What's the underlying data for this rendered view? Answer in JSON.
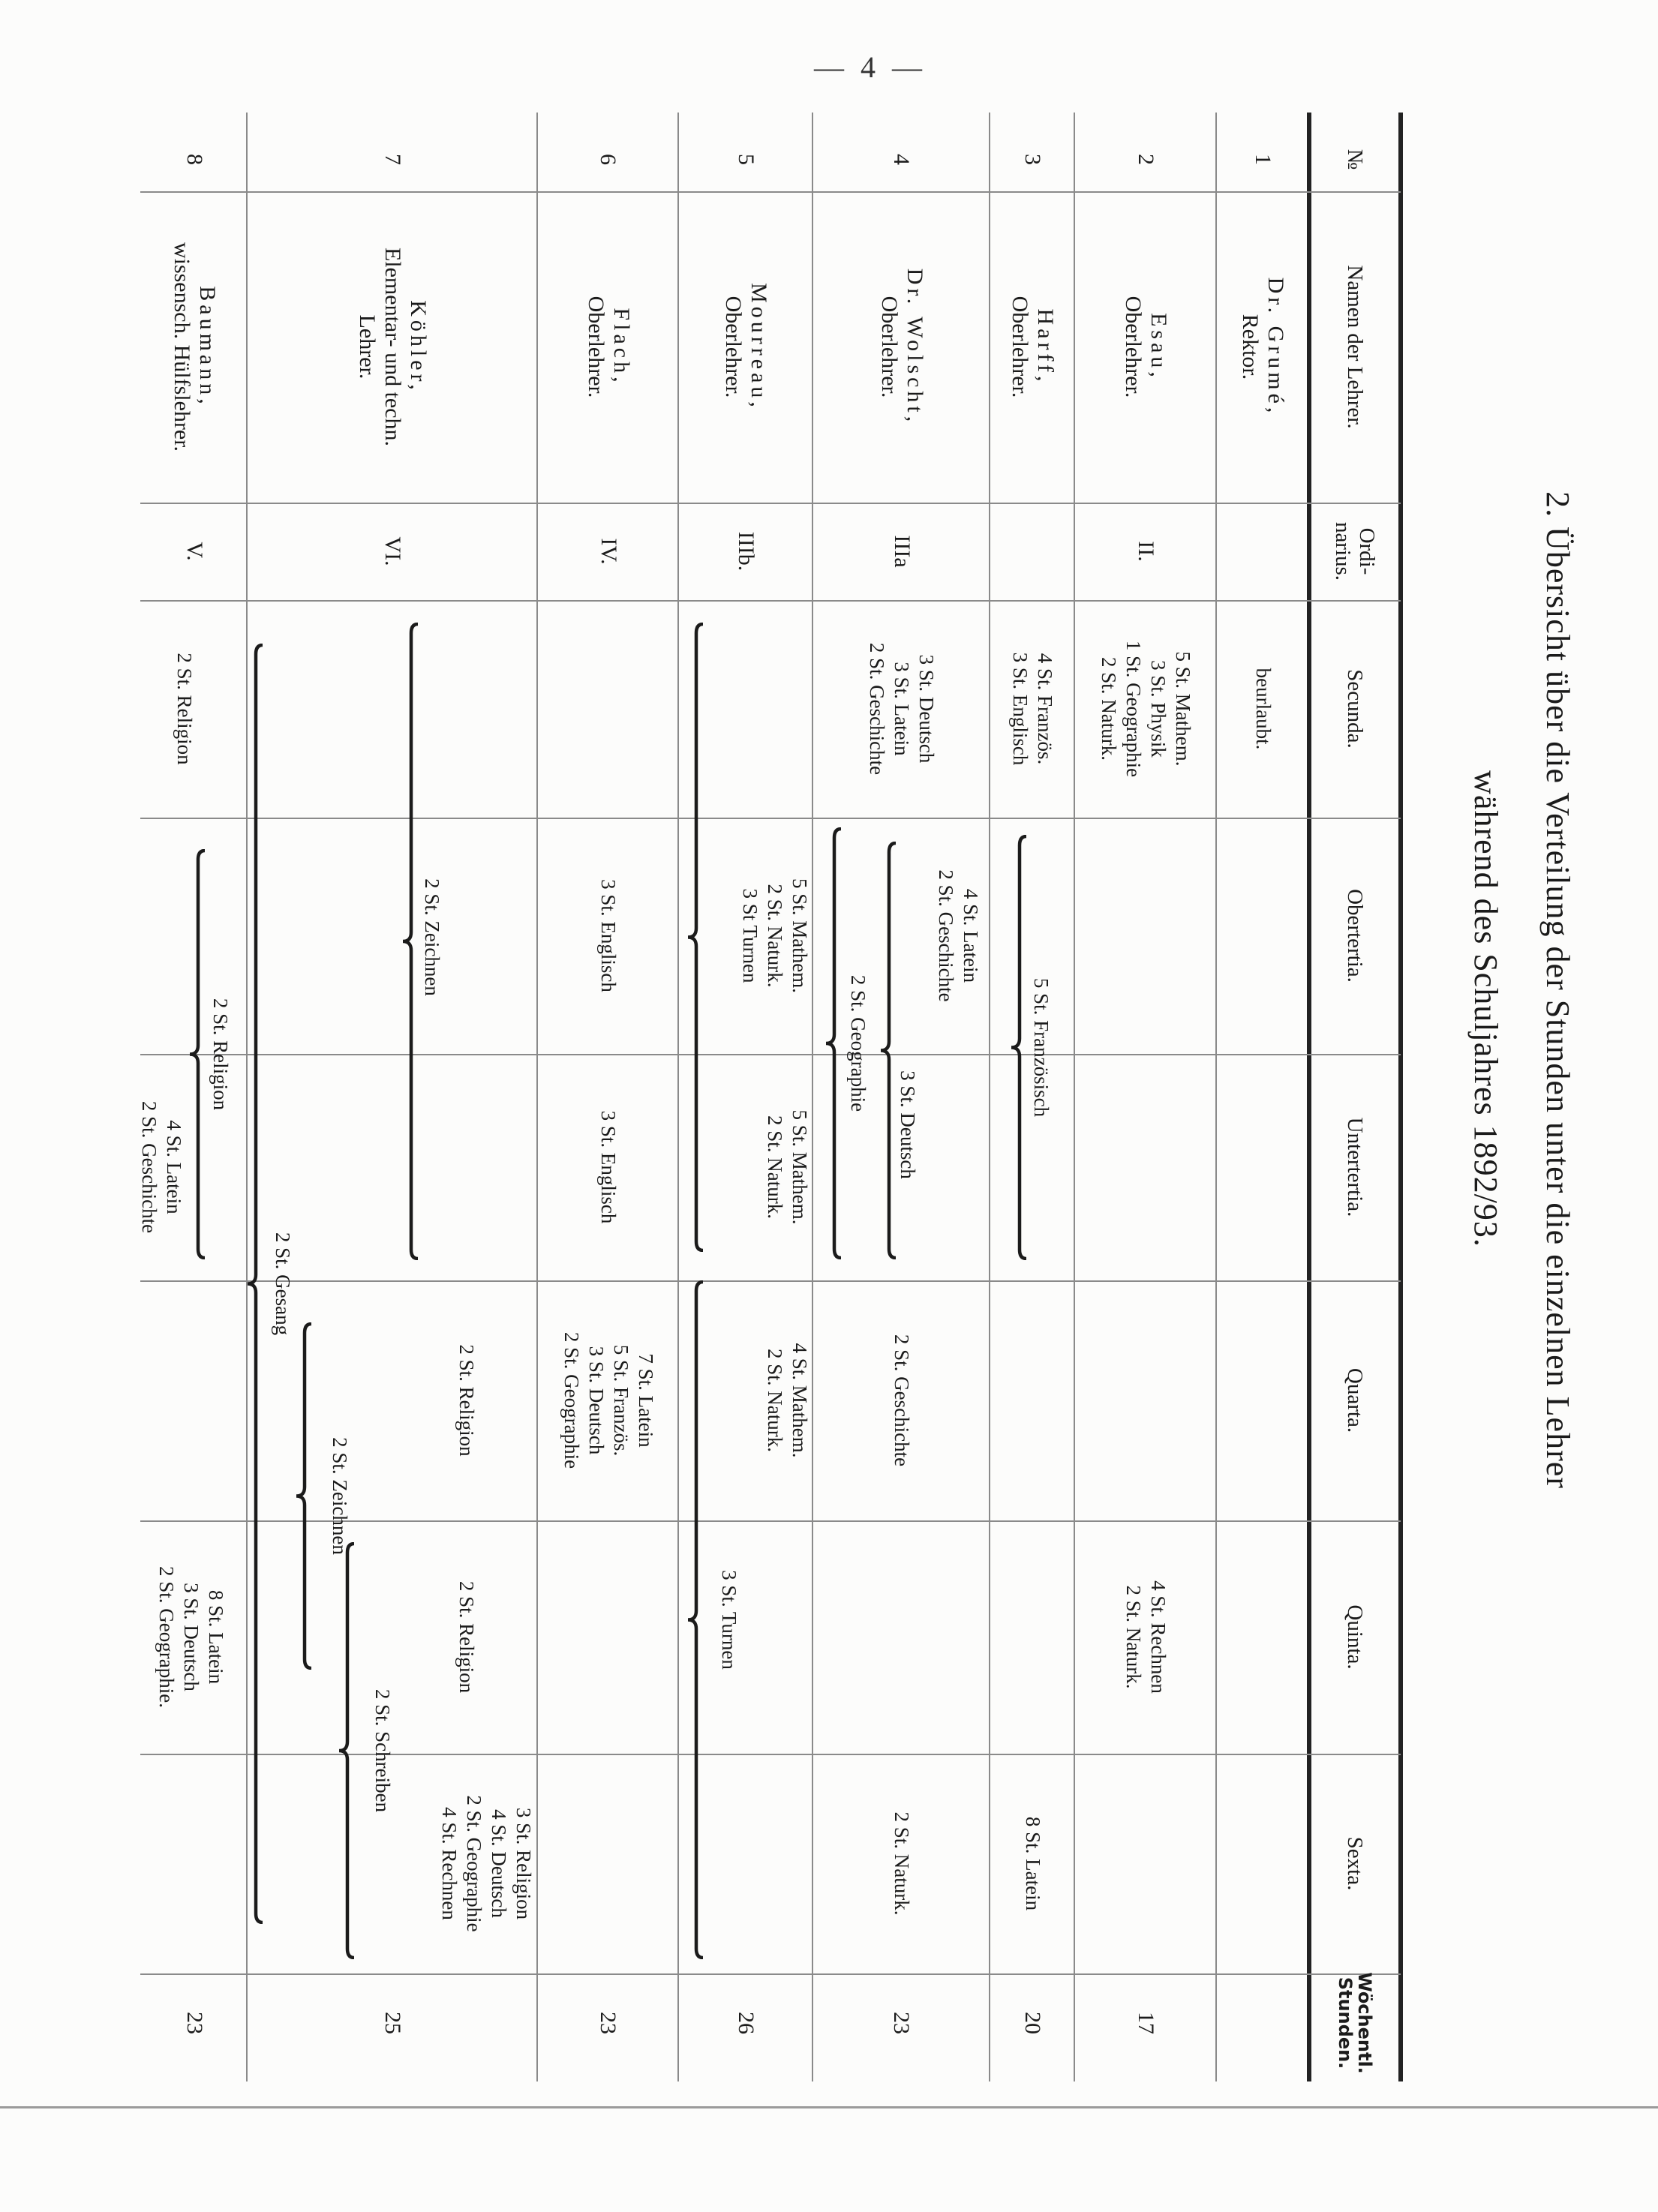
{
  "page_number": "— 4 —",
  "title": {
    "line1": "2. Übersicht über die Verteilung der Stunden unter die einzelnen Lehrer",
    "line2": "während des Schuljahres 1892/93."
  },
  "headers": {
    "nr": "№",
    "name": "Namen der Lehrer.",
    "ordinarius": [
      "Ordi-",
      "narius."
    ],
    "secunda": "Secunda.",
    "obertertia": "Obertertia.",
    "untertertia": "Untertertia.",
    "quarta": "Quarta.",
    "quinta": "Quinta.",
    "sexta": "Sexta.",
    "total": [
      "Wöchentl.",
      "Stunden."
    ]
  },
  "rows": [
    {
      "nr": "1",
      "name": "Dr. Grumé,",
      "role": [
        "Rektor."
      ],
      "ordinarius": "",
      "secunda": [
        "beurlaubt."
      ],
      "total": ""
    },
    {
      "nr": "2",
      "name": "Esau,",
      "role": [
        "Oberlehrer."
      ],
      "ordinarius": "II.",
      "secunda": [
        "5 St. Mathem.",
        "3 St. Physik",
        "1 St. Geographie",
        "2 St. Naturk."
      ],
      "quinta": [
        "4 St. Rechnen",
        "2 St. Naturk."
      ],
      "total": "17"
    },
    {
      "nr": "3",
      "name": "Harff,",
      "role": [
        "Oberlehrer."
      ],
      "ordinarius": "",
      "secunda": [
        "4 St. Französ.",
        "3 St. Englisch"
      ],
      "spans": [
        {
          "columns": [
            "Obertertia",
            "Untertertia"
          ],
          "label": "5 St. Französisch"
        }
      ],
      "sexta": [
        "8 St. Latein"
      ],
      "total": "20"
    },
    {
      "nr": "4",
      "name": "Dr. Wolscht,",
      "role": [
        "Oberlehrer."
      ],
      "ordinarius": "IIIa",
      "secunda": [
        "3 St. Deutsch",
        "3 St. Latein",
        "2 St. Geschichte"
      ],
      "obertertia": [
        "4 St. Latein",
        "2 St. Geschichte"
      ],
      "spans": [
        {
          "columns": [
            "Obertertia",
            "Untertertia"
          ],
          "label": "3 St. Deutsch"
        },
        {
          "columns": [
            "Obertertia",
            "Untertertia"
          ],
          "label": "2 St. Geographie"
        }
      ],
      "quarta": [
        "2 St. Geschichte"
      ],
      "sexta": [
        "2 St. Naturk."
      ],
      "total": "23"
    },
    {
      "nr": "5",
      "name": "Mourreau,",
      "role": [
        "Oberlehrer."
      ],
      "ordinarius": "IIIb.",
      "obertertia": [
        "5 St. Mathem.",
        "2 St. Naturk."
      ],
      "untertertia": [
        "5 St. Mathem.",
        "2 St. Naturk."
      ],
      "quarta": [
        "4 St. Mathem.",
        "2 St. Naturk."
      ],
      "spans": [
        {
          "columns": [
            "Secunda",
            "Obertertia",
            "Untertertia"
          ],
          "label": "3 St Turnen"
        },
        {
          "columns": [
            "Quarta",
            "Quinta",
            "Sexta"
          ],
          "label": "3 St. Turnen"
        }
      ],
      "total": "26"
    },
    {
      "nr": "6",
      "name": "Flach,",
      "role": [
        "Oberlehrer."
      ],
      "ordinarius": "IV.",
      "obertertia": [
        "3 St. Englisch"
      ],
      "untertertia": [
        "3 St. Englisch"
      ],
      "quarta": [
        "7 St. Latein",
        "5 St. Französ.",
        "3 St. Deutsch",
        "2 St. Geographie"
      ],
      "total": "23"
    },
    {
      "nr": "7",
      "name": "Köhler,",
      "role": [
        "Elementar- und techn.",
        "Lehrer."
      ],
      "ordinarius": "VI.",
      "quarta": [
        "2 St. Religion"
      ],
      "quinta": [
        "2 St. Religion"
      ],
      "sexta": [
        "3 St. Religion",
        "4 St. Deutsch",
        "2 St. Geographie",
        "4 St. Rechnen"
      ],
      "spans": [
        {
          "columns": [
            "Secunda",
            "Obertertia",
            "Untertertia"
          ],
          "label": "2 St. Zeichnen"
        },
        {
          "columns": [
            "Quarta",
            "Quinta"
          ],
          "label": "2 St. Zeichnen"
        },
        {
          "columns": [
            "Quinta",
            "Sexta"
          ],
          "label": "2 St. Schreiben"
        },
        {
          "columns": [
            "Secunda",
            "Obertertia",
            "Untertertia",
            "Quarta",
            "Quinta",
            "Sexta"
          ],
          "label": "2 St. Gesang"
        }
      ],
      "total": "25"
    },
    {
      "nr": "8",
      "name": "Baumann,",
      "role": [
        "wissensch. Hülfslehrer."
      ],
      "ordinarius": "V.",
      "secunda": [
        "2 St. Religion"
      ],
      "spans": [
        {
          "columns": [
            "Obertertia",
            "Untertertia"
          ],
          "label": "2 St. Religion"
        }
      ],
      "untertertia": [
        "4 St. Latein",
        "2 St. Geschichte"
      ],
      "quinta": [
        "8 St. Latein",
        "3 St. Deutsch",
        "2 St. Geographie."
      ],
      "total": "23"
    }
  ]
}
